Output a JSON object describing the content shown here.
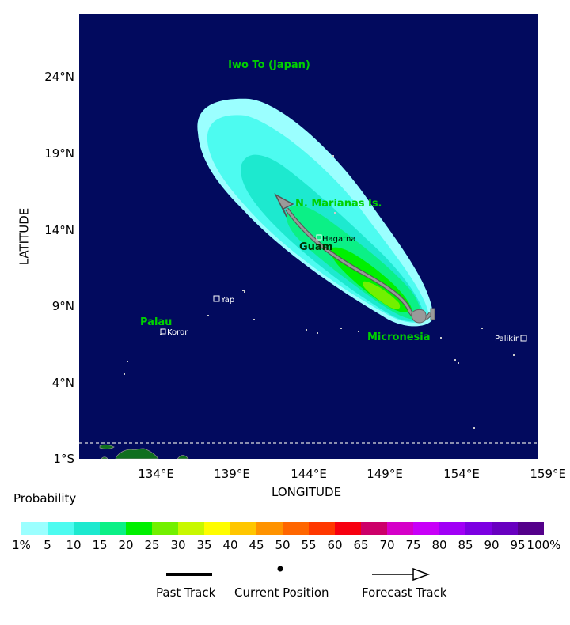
{
  "map": {
    "x_axis": {
      "title": "LONGITUDE",
      "ticks": [
        {
          "label": "134°E",
          "lon": 134
        },
        {
          "label": "139°E",
          "lon": 139
        },
        {
          "label": "144°E",
          "lon": 144
        },
        {
          "label": "149°E",
          "lon": 149
        },
        {
          "label": "154°E",
          "lon": 154
        },
        {
          "label": "159°E",
          "lon": 159
        }
      ]
    },
    "y_axis": {
      "title": "LATITUDE",
      "ticks": [
        {
          "label": "24°N",
          "lat": 24
        },
        {
          "label": "19°N",
          "lat": 19
        },
        {
          "label": "14°N",
          "lat": 14
        },
        {
          "label": "9°N",
          "lat": 9
        },
        {
          "label": "4°N",
          "lat": 4
        },
        {
          "label": "1°S",
          "lat": -1
        }
      ]
    },
    "regions": [
      {
        "name": "Iwo To (Japan)"
      },
      {
        "name": "N. Marianas Is."
      },
      {
        "name": "Guam"
      },
      {
        "name": "Palau"
      },
      {
        "name": "Micronesia"
      }
    ],
    "cities": [
      {
        "name": "Hagatna"
      },
      {
        "name": "Yap"
      },
      {
        "name": "Koror"
      },
      {
        "name": "Palikir"
      }
    ]
  },
  "legend": {
    "title": "Probability",
    "labels": [
      "1%",
      "5",
      "10",
      "15",
      "20",
      "25",
      "30",
      "35",
      "40",
      "45",
      "50",
      "55",
      "60",
      "65",
      "70",
      "75",
      "80",
      "85",
      "90",
      "95",
      "100%"
    ],
    "colors": [
      "#9bffff",
      "#4dfbf0",
      "#1de9cf",
      "#0bf086",
      "#00f000",
      "#72f000",
      "#c8f800",
      "#fffd00",
      "#ffc600",
      "#ff9300",
      "#ff6600",
      "#ff3800",
      "#f70010",
      "#cc0069",
      "#d500c8",
      "#c800f8",
      "#a100f6",
      "#7c00e2",
      "#6800c0",
      "#54008a"
    ],
    "track_keys": [
      "Past Track",
      "Current Position",
      "Forecast Track"
    ]
  }
}
